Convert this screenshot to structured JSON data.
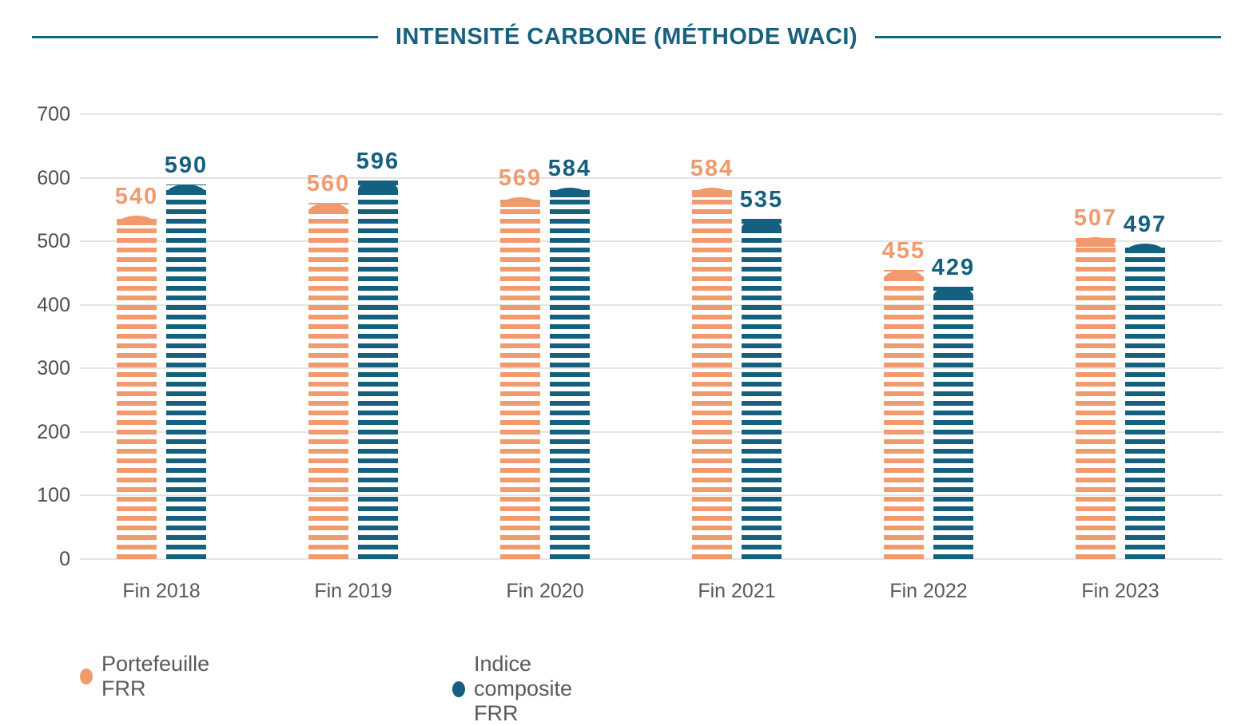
{
  "header": {
    "title": "INTENSITÉ CARBONE (MÉTHODE WACI)"
  },
  "colors": {
    "title": "#16617F",
    "portfolio_orange": "#F09A6E",
    "index_teal": "#15607E",
    "axis_text": "#4d4d4f",
    "category_text": "#58595b",
    "gridline": "#e4e4e4"
  },
  "chart_data": {
    "type": "bar",
    "title": "INTENSITÉ CARBONE (MÉTHODE WACI)",
    "categories": [
      "Fin 2018",
      "Fin 2019",
      "Fin 2020",
      "Fin 2021",
      "Fin 2022",
      "Fin 2023"
    ],
    "series": [
      {
        "name": "Portefeuille FRR",
        "color": "#F09A6E",
        "values": [
          540,
          560,
          569,
          584,
          455,
          507
        ]
      },
      {
        "name": "Indice composite FRR",
        "color": "#15607E",
        "values": [
          590,
          596,
          584,
          535,
          429,
          497
        ]
      }
    ],
    "xlabel": "",
    "ylabel": "",
    "ylim": [
      0,
      700
    ],
    "yticks": [
      0,
      100,
      200,
      300,
      400,
      500,
      600,
      700
    ],
    "grid": "horizontal",
    "value_labels": "above each bar, colored as its series",
    "bar_pattern": "horizontal stripes with rounded dome cap",
    "legend_position": "bottom-left"
  },
  "legend": {
    "items": [
      {
        "label": "Portefeuille FRR",
        "color": "#F09A6E"
      },
      {
        "label": "Indice composite FRR",
        "color": "#15607E"
      }
    ]
  }
}
